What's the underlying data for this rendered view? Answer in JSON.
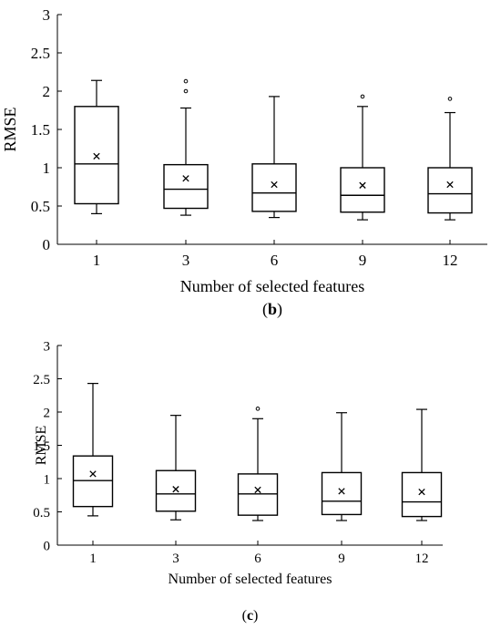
{
  "chart_data": [
    {
      "type": "box",
      "panel_label": "(b)",
      "xlabel": "Number of selected features",
      "ylabel": "RMSE",
      "ylim": [
        0,
        3
      ],
      "yticks": [
        "0",
        "0.5",
        "1",
        "1.5",
        "2",
        "2.5",
        "3"
      ],
      "categories": [
        "1",
        "3",
        "6",
        "9",
        "12"
      ],
      "boxes": [
        {
          "min": 0.4,
          "q1": 0.53,
          "median": 1.05,
          "q3": 1.8,
          "max": 2.14,
          "mean": 1.15,
          "outliers": []
        },
        {
          "min": 0.38,
          "q1": 0.47,
          "median": 0.72,
          "q3": 1.04,
          "max": 1.78,
          "mean": 0.86,
          "outliers": [
            2.0,
            2.13
          ]
        },
        {
          "min": 0.35,
          "q1": 0.43,
          "median": 0.67,
          "q3": 1.05,
          "max": 1.93,
          "mean": 0.78,
          "outliers": []
        },
        {
          "min": 0.32,
          "q1": 0.42,
          "median": 0.64,
          "q3": 1.0,
          "max": 1.8,
          "mean": 0.77,
          "outliers": [
            1.93
          ]
        },
        {
          "min": 0.32,
          "q1": 0.41,
          "median": 0.66,
          "q3": 1.0,
          "max": 1.72,
          "mean": 0.78,
          "outliers": [
            1.9
          ]
        }
      ]
    },
    {
      "type": "box",
      "panel_label": "(c)",
      "xlabel": "Number of selected features",
      "ylabel": "RMSE",
      "ylim": [
        0,
        3
      ],
      "yticks": [
        "0",
        "0.5",
        "1",
        "1.5",
        "2",
        "2.5",
        "3"
      ],
      "categories": [
        "1",
        "3",
        "6",
        "9",
        "12"
      ],
      "boxes": [
        {
          "min": 0.44,
          "q1": 0.58,
          "median": 0.97,
          "q3": 1.34,
          "max": 2.43,
          "mean": 1.07,
          "outliers": []
        },
        {
          "min": 0.38,
          "q1": 0.51,
          "median": 0.77,
          "q3": 1.12,
          "max": 1.95,
          "mean": 0.84,
          "outliers": []
        },
        {
          "min": 0.37,
          "q1": 0.45,
          "median": 0.77,
          "q3": 1.07,
          "max": 1.9,
          "mean": 0.83,
          "outliers": [
            2.05
          ]
        },
        {
          "min": 0.37,
          "q1": 0.46,
          "median": 0.66,
          "q3": 1.09,
          "max": 1.99,
          "mean": 0.81,
          "outliers": []
        },
        {
          "min": 0.37,
          "q1": 0.43,
          "median": 0.65,
          "q3": 1.09,
          "max": 2.04,
          "mean": 0.8,
          "outliers": []
        }
      ]
    }
  ]
}
